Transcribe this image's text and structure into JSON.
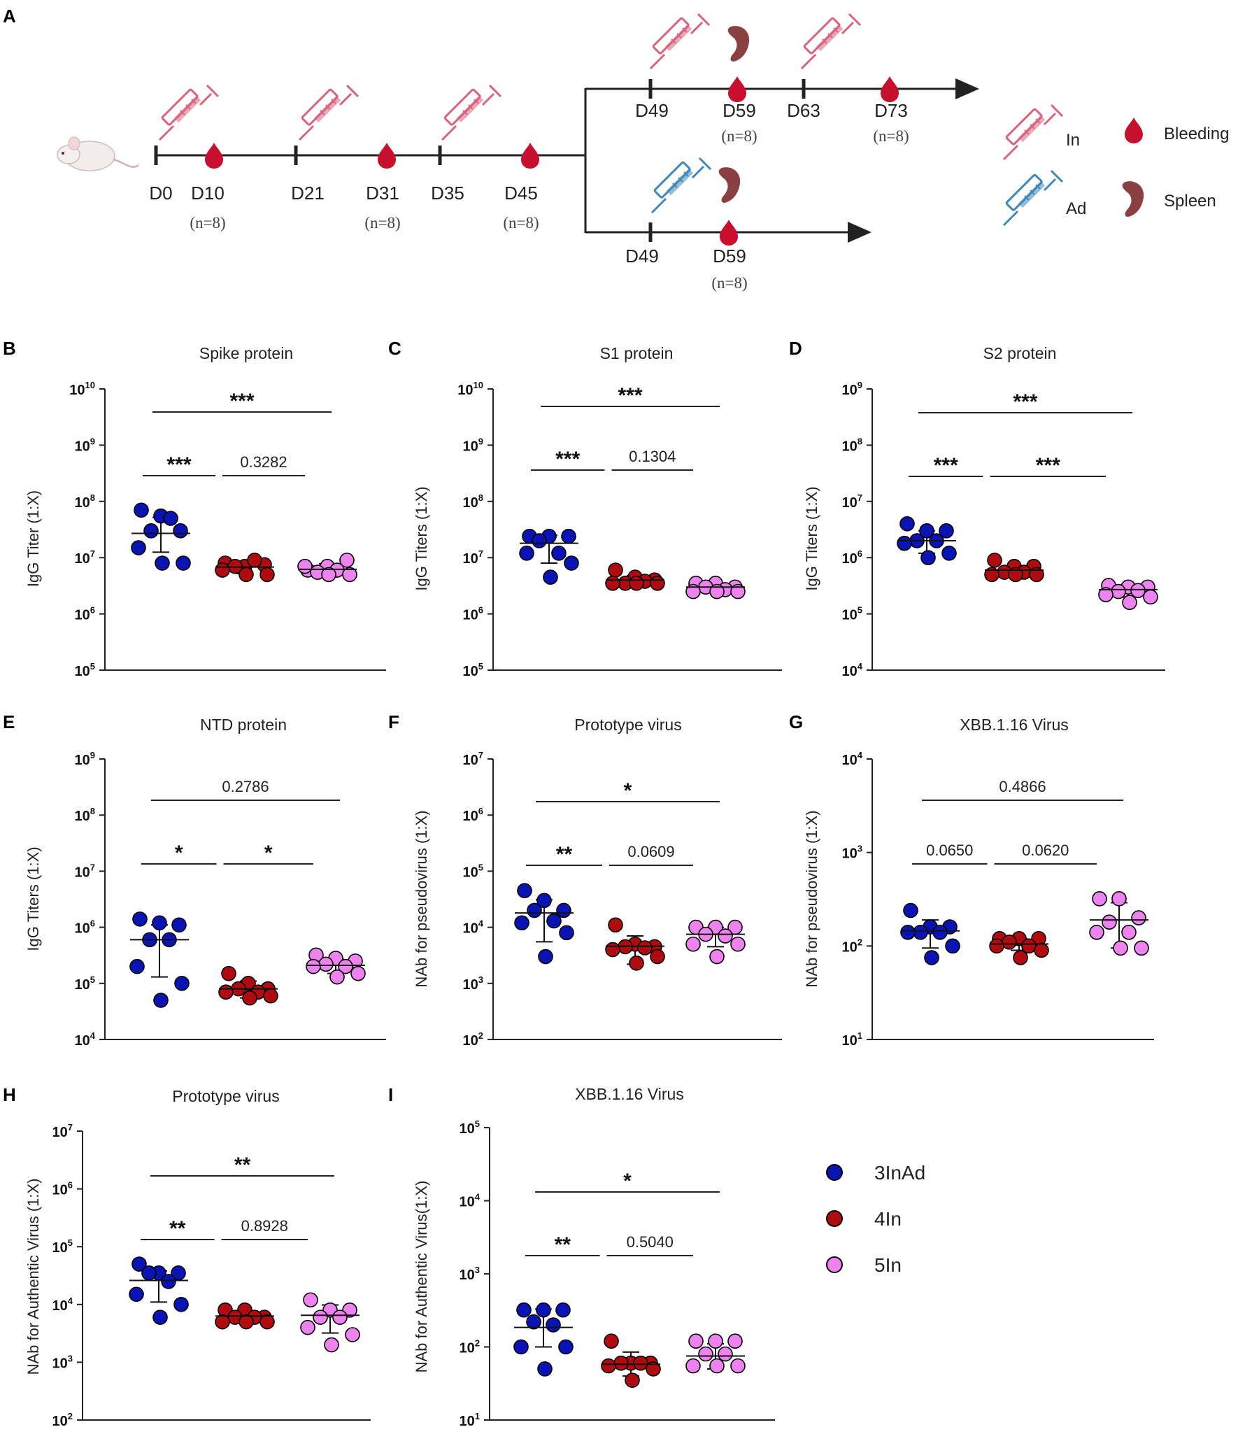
{
  "figure": {
    "panel_a": {
      "label": "A",
      "prime_days": [
        {
          "day": "D0",
          "n": ""
        },
        {
          "day": "D10",
          "n": "(n=8)"
        },
        {
          "day": "D21",
          "n": ""
        },
        {
          "day": "D31",
          "n": "(n=8)"
        },
        {
          "day": "D35",
          "n": ""
        },
        {
          "day": "D45",
          "n": "(n=8)"
        }
      ],
      "upper_days": [
        {
          "day": "D49",
          "n": ""
        },
        {
          "day": "D59",
          "n": "(n=8)"
        },
        {
          "day": "D63",
          "n": ""
        },
        {
          "day": "D73",
          "n": "(n=8)"
        }
      ],
      "lower_days": [
        {
          "day": "D49",
          "n": ""
        },
        {
          "day": "D59",
          "n": "(n=8)"
        }
      ],
      "legend": {
        "inactivated": "In",
        "adenovirus": "Ad",
        "bleeding": "Bleeding",
        "spleen": "Spleen"
      }
    },
    "group_legend": [
      "3InAd",
      "4In",
      "5In"
    ],
    "colors": {
      "3InAd": "#0a14b4",
      "4In": "#b00c10",
      "5In": "#ee82ee",
      "syringe_in": "#d9637e",
      "syringe_ad": "#3f89b8",
      "blood": "#c8102e",
      "spleen": "#8a4040"
    }
  },
  "chart_data": [
    {
      "type": "scatter",
      "label": "B",
      "title": "Spike protein",
      "ylabel": "IgG Titer (1:X)",
      "ylim_exp": [
        5,
        10
      ],
      "categories": [
        "3InAd",
        "4In",
        "5In"
      ],
      "series": [
        {
          "name": "3InAd",
          "values": [
            70000000.0,
            55000000.0,
            30000000.0,
            30000000.0,
            50000000.0,
            15000000.0,
            8000000.0,
            8000000.0
          ],
          "mean": 27000000.0,
          "sd_low": 12500000.0,
          "sd_high": 52000000.0
        },
        {
          "name": "4In",
          "values": [
            8000000.0,
            7000000.0,
            7500000.0,
            7000000.0,
            9000000.0,
            6000000.0,
            5000000.0,
            5000000.0
          ],
          "mean": 6800000.0,
          "sd_low": 5200000.0,
          "sd_high": 8000000.0
        },
        {
          "name": "5In",
          "values": [
            6000000.0,
            7000000.0,
            9000000.0,
            5500000.0,
            6000000.0,
            7000000.0,
            5000000.0,
            5000000.0
          ],
          "mean": 6200000.0,
          "sd_low": 5000000.0,
          "sd_high": 7800000.0
        }
      ],
      "comparisons": [
        {
          "groups": [
            0,
            2
          ],
          "label": "***"
        },
        {
          "groups": [
            0,
            1
          ],
          "label": "***"
        },
        {
          "groups": [
            1,
            2
          ],
          "label": "0.3282"
        }
      ]
    },
    {
      "type": "scatter",
      "label": "C",
      "title": "S1 protein",
      "ylabel": "IgG Titers (1:X)",
      "ylim_exp": [
        5,
        10
      ],
      "categories": [
        "3InAd",
        "4In",
        "5In"
      ],
      "series": [
        {
          "name": "3InAd",
          "values": [
            24000000.0,
            24000000.0,
            24000000.0,
            20000000.0,
            12000000.0,
            12000000.0,
            8000000.0,
            4500000.0
          ],
          "mean": 18000000.0,
          "sd_low": 8000000.0,
          "sd_high": 25000000.0
        },
        {
          "name": "4In",
          "values": [
            6000000.0,
            4500000.0,
            4000000.0,
            3500000.0,
            3800000.0,
            3500000.0,
            3500000.0,
            3500000.0
          ],
          "mean": 4000000.0,
          "sd_low": 3600000.0,
          "sd_high": 4800000.0
        },
        {
          "name": "5In",
          "values": [
            3500000.0,
            3500000.0,
            3000000.0,
            3000000.0,
            2700000.0,
            2500000.0,
            2500000.0,
            2500000.0
          ],
          "mean": 3000000.0,
          "sd_low": 2500000.0,
          "sd_high": 3500000.0
        }
      ],
      "comparisons": [
        {
          "groups": [
            0,
            2
          ],
          "label": "***"
        },
        {
          "groups": [
            0,
            1
          ],
          "label": "***"
        },
        {
          "groups": [
            1,
            2
          ],
          "label": "0.1304"
        }
      ]
    },
    {
      "type": "scatter",
      "label": "D",
      "title": "S2 protein",
      "ylabel": "IgG Titers (1:X)",
      "ylim_exp": [
        4,
        9
      ],
      "categories": [
        "3InAd",
        "4In",
        "5In"
      ],
      "series": [
        {
          "name": "3InAd",
          "values": [
            4000000.0,
            3000000.0,
            3000000.0,
            2000000.0,
            2000000.0,
            1800000.0,
            1200000.0,
            1000000.0
          ],
          "mean": 2000000.0,
          "sd_low": 1200000.0,
          "sd_high": 3000000.0
        },
        {
          "name": "4In",
          "values": [
            900000.0,
            700000.0,
            700000.0,
            550000.0,
            550000.0,
            500000.0,
            500000.0,
            500000.0
          ],
          "mean": 600000.0,
          "sd_low": 480000.0,
          "sd_high": 700000.0
        },
        {
          "name": "5In",
          "values": [
            320000.0,
            300000.0,
            300000.0,
            250000.0,
            260000.0,
            220000.0,
            200000.0,
            160000.0
          ],
          "mean": 270000.0,
          "sd_low": 200000.0,
          "sd_high": 310000.0
        }
      ],
      "comparisons": [
        {
          "groups": [
            0,
            2
          ],
          "label": "***"
        },
        {
          "groups": [
            0,
            1
          ],
          "label": "***"
        },
        {
          "groups": [
            1,
            2
          ],
          "label": "***"
        }
      ]
    },
    {
      "type": "scatter",
      "label": "E",
      "title": "NTD protein",
      "ylabel": "IgG Titers (1:X)",
      "ylim_exp": [
        4,
        9
      ],
      "categories": [
        "3InAd",
        "4In",
        "5In"
      ],
      "series": [
        {
          "name": "3InAd",
          "values": [
            1400000.0,
            1200000.0,
            1100000.0,
            600000.0,
            600000.0,
            200000.0,
            100000.0,
            50000.0
          ],
          "mean": 600000.0,
          "sd_low": 130000.0,
          "sd_high": 1100000.0
        },
        {
          "name": "4In",
          "values": [
            150000.0,
            100000.0,
            80000.0,
            80000.0,
            70000.0,
            70000.0,
            60000.0,
            55000.0
          ],
          "mean": 80000.0,
          "sd_low": 55000.0,
          "sd_high": 110000.0
        },
        {
          "name": "5In",
          "values": [
            320000.0,
            280000.0,
            250000.0,
            220000.0,
            200000.0,
            200000.0,
            150000.0,
            130000.0
          ],
          "mean": 210000.0,
          "sd_low": 150000.0,
          "sd_high": 270000.0
        }
      ],
      "comparisons": [
        {
          "groups": [
            0,
            2
          ],
          "label": "0.2786"
        },
        {
          "groups": [
            0,
            1
          ],
          "label": "*"
        },
        {
          "groups": [
            1,
            2
          ],
          "label": "*"
        }
      ]
    },
    {
      "type": "scatter",
      "label": "F",
      "title": "Prototype virus",
      "ylabel": "NAb for pseudovirus (1:X)",
      "ylim_exp": [
        2,
        7
      ],
      "categories": [
        "3InAd",
        "4In",
        "5In"
      ],
      "series": [
        {
          "name": "3InAd",
          "values": [
            45000.0,
            30000.0,
            20000.0,
            20000.0,
            13000.0,
            12000.0,
            8000.0,
            3000.0
          ],
          "mean": 18000.0,
          "sd_low": 5500.0,
          "sd_high": 31000.0
        },
        {
          "name": "4In",
          "values": [
            11000.0,
            5000.0,
            4500.0,
            4500.0,
            4300.0,
            4000.0,
            3000.0,
            2300.0
          ],
          "mean": 4600.0,
          "sd_low": 2200.0,
          "sd_high": 7000.0
        },
        {
          "name": "5In",
          "values": [
            10000.0,
            10000.0,
            10000.0,
            7500.0,
            7000.0,
            5000.0,
            5000.0,
            3000.0
          ],
          "mean": 7500.0,
          "sd_low": 4500.0,
          "sd_high": 10000.0
        }
      ],
      "comparisons": [
        {
          "groups": [
            0,
            2
          ],
          "label": "*"
        },
        {
          "groups": [
            0,
            1
          ],
          "label": "**"
        },
        {
          "groups": [
            1,
            2
          ],
          "label": "0.0609"
        }
      ]
    },
    {
      "type": "scatter",
      "label": "G",
      "title": "XBB.1.16  Virus",
      "ylabel": "NAb for pseudovirus (1:X)",
      "ylim_exp": [
        1,
        4
      ],
      "categories": [
        "3InAd",
        "4In",
        "5In"
      ],
      "series": [
        {
          "name": "3InAd",
          "values": [
            240,
            160,
            160,
            140,
            140,
            140,
            100,
            75
          ],
          "mean": 145,
          "sd_low": 95,
          "sd_high": 190
        },
        {
          "name": "4In",
          "values": [
            120,
            120,
            120,
            110,
            100,
            100,
            90,
            75
          ],
          "mean": 105,
          "sd_low": 90,
          "sd_high": 120
        },
        {
          "name": "5In",
          "values": [
            320,
            320,
            200,
            180,
            140,
            140,
            95,
            95
          ],
          "mean": 190,
          "sd_low": 95,
          "sd_high": 290
        }
      ],
      "comparisons": [
        {
          "groups": [
            0,
            2
          ],
          "label": "0.4866"
        },
        {
          "groups": [
            0,
            1
          ],
          "label": "0.0650"
        },
        {
          "groups": [
            1,
            2
          ],
          "label": "0.0620"
        }
      ]
    },
    {
      "type": "scatter",
      "label": "H",
      "title": "Prototype virus",
      "ylabel": "NAb for Authentic Virus (1:X)",
      "ylim_exp": [
        2,
        7
      ],
      "categories": [
        "3InAd",
        "4In",
        "5In"
      ],
      "series": [
        {
          "name": "3InAd",
          "values": [
            50000.0,
            35000.0,
            35000.0,
            35000.0,
            25000.0,
            15000.0,
            10000.0,
            6000.0
          ],
          "mean": 26000.0,
          "sd_low": 11000.0,
          "sd_high": 38000.0
        },
        {
          "name": "4In",
          "values": [
            8000.0,
            8000.0,
            6000.0,
            6000.0,
            6000.0,
            5000.0,
            5000.0,
            5000.0
          ],
          "mean": 6300.0,
          "sd_low": 4800.0,
          "sd_high": 7800.0
        },
        {
          "name": "5In",
          "values": [
            12000.0,
            8000.0,
            8000.0,
            6000.0,
            6000.0,
            4000.0,
            3000.0,
            2000.0
          ],
          "mean": 6500.0,
          "sd_low": 3200.0,
          "sd_high": 9800.0
        }
      ],
      "comparisons": [
        {
          "groups": [
            0,
            2
          ],
          "label": "**"
        },
        {
          "groups": [
            0,
            1
          ],
          "label": "**"
        },
        {
          "groups": [
            1,
            2
          ],
          "label": "0.8928"
        }
      ]
    },
    {
      "type": "scatter",
      "label": "I",
      "title": "XBB.1.16  Virus",
      "ylabel": "NAb for Authentic Virus(1:X)",
      "ylim_exp": [
        1,
        5
      ],
      "categories": [
        "3InAd",
        "4In",
        "5In"
      ],
      "series": [
        {
          "name": "3InAd",
          "values": [
            320,
            320,
            320,
            220,
            200,
            100,
            100,
            50
          ],
          "mean": 185,
          "sd_low": 100,
          "sd_high": 330
        },
        {
          "name": "4In",
          "values": [
            120,
            60,
            60,
            60,
            60,
            55,
            50,
            35
          ],
          "mean": 58,
          "sd_low": 40,
          "sd_high": 85
        },
        {
          "name": "5In",
          "values": [
            120,
            120,
            120,
            80,
            80,
            55,
            55,
            55
          ],
          "mean": 75,
          "sd_low": 50,
          "sd_high": 110
        }
      ],
      "comparisons": [
        {
          "groups": [
            0,
            2
          ],
          "label": "*"
        },
        {
          "groups": [
            0,
            1
          ],
          "label": "**"
        },
        {
          "groups": [
            1,
            2
          ],
          "label": "0.5040"
        }
      ]
    }
  ]
}
